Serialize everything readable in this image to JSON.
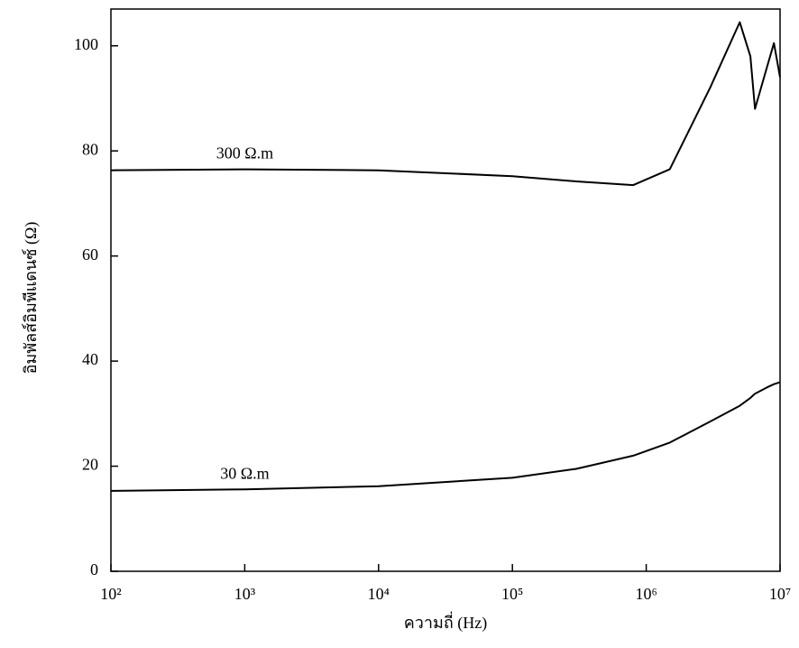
{
  "chart_data": {
    "type": "line",
    "x_label": "ความถี่ (Hz)",
    "y_label": "อิมพัลส์อิมพีแดนซ์ (Ω)",
    "log_x": true,
    "x": [
      100,
      1000,
      10000,
      100000,
      300000,
      800000,
      1500000,
      3000000,
      5000000,
      6000000,
      6500000,
      8000000,
      9000000,
      10000000
    ],
    "series": [
      {
        "name": "300 Ω.m",
        "color": "#000000",
        "values": [
          76.3,
          76.5,
          76.3,
          75.2,
          74.2,
          73.5,
          76.5,
          92,
          104.5,
          98,
          88,
          96,
          100.5,
          94
        ]
      },
      {
        "name": "30 Ω.m",
        "color": "#000000",
        "values": [
          15.3,
          15.6,
          16.2,
          17.8,
          19.5,
          22,
          24.5,
          28.5,
          31.5,
          33,
          33.8,
          35,
          35.6,
          36
        ]
      }
    ],
    "xlim": [
      100,
      10000000
    ],
    "ylim": [
      0,
      107
    ],
    "xticks": [
      {
        "value": 100,
        "label": "10²"
      },
      {
        "value": 1000,
        "label": "10³"
      },
      {
        "value": 10000,
        "label": "10⁴"
      },
      {
        "value": 100000,
        "label": "10⁵"
      },
      {
        "value": 1000000,
        "label": "10⁶"
      },
      {
        "value": 10000000,
        "label": "10⁷"
      }
    ],
    "yticks": [
      0,
      20,
      40,
      60,
      80,
      100
    ],
    "grid": false
  }
}
